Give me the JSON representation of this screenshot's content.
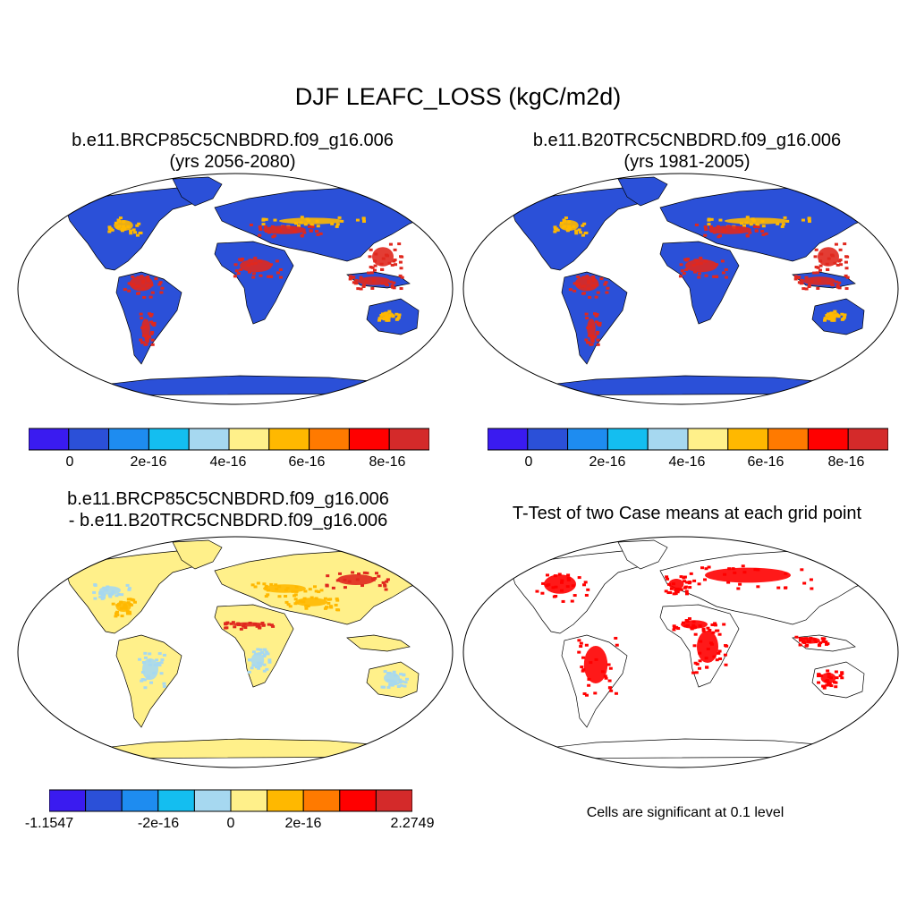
{
  "title": "DJF LEAFC_LOSS (kgC/m2d)",
  "panels": [
    {
      "title_line1": "b.e11.BRCP85C5CNBDRD.f09_g16.006",
      "title_line2": "(yrs 2056-2080)"
    },
    {
      "title_line1": "b.e11.B20TRC5CNBDRD.f09_g16.006",
      "title_line2": "(yrs 1981-2005)"
    },
    {
      "title_line1": "b.e11.BRCP85C5CNBDRD.f09_g16.006",
      "title_line2": "- b.e11.B20TRC5CNBDRD.f09_g16.006"
    },
    {
      "title_line1": "T-Test of two Case means at each grid point",
      "title_line2": ""
    }
  ],
  "colorbar_top": {
    "colors": [
      "#3a1bf0",
      "#2b50d8",
      "#1e8cf0",
      "#14bef0",
      "#a6d8f0",
      "#fff08a",
      "#ffb800",
      "#ff7a00",
      "#ff0000",
      "#d42a2a"
    ],
    "labels": [
      "0",
      "2e-16",
      "4e-16",
      "6e-16",
      "8e-16"
    ]
  },
  "colorbar_diff": {
    "colors": [
      "#3a1bf0",
      "#2b50d8",
      "#1e8cf0",
      "#14bef0",
      "#a6d8f0",
      "#fff08a",
      "#ffb800",
      "#ff7a00",
      "#ff0000",
      "#d42a2a"
    ],
    "labels": [
      "-1.1547",
      "-2e-16",
      "0",
      "2e-16",
      "2.2749"
    ]
  },
  "significance_note": "Cells are significant at 0.1 level",
  "map_colors": {
    "ocean": "#ffffff",
    "low": "#2b50d8",
    "high": "#e0281e",
    "mid": "#ffb800",
    "diff_base": "#fff08a",
    "diff_neg": "#a6d8f0",
    "sig": "#ff0000"
  }
}
